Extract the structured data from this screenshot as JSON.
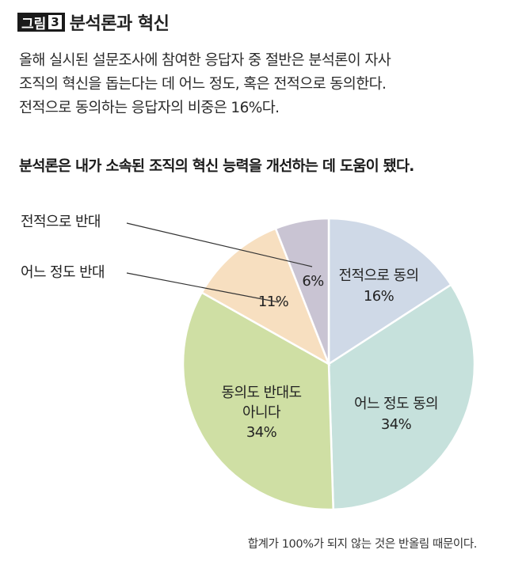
{
  "figure": {
    "badge": "그림",
    "number": "3",
    "title": "분석론과 혁신"
  },
  "intro_lines": [
    "올해 실시된 설문조사에 참여한 응답자 중 절반은 분석론이 자사",
    "조직의 혁신을 돕는다는 데 어느 정도, 혹은 전적으로 동의한다.",
    "전적으로 동의하는 응답자의 비중은 16%다."
  ],
  "question": "분석론은 내가 소속된 조직의 혁신 능력을 개선하는 데 도움이 됐다.",
  "footnote": "합계가 100%가 되지 않는 것은 반올림 때문이다.",
  "chart_data": {
    "type": "pie",
    "title": "",
    "start_angle_deg": 0,
    "direction": "clockwise",
    "slices": [
      {
        "label": "전적으로 동의",
        "value": 16,
        "value_label": "16%",
        "color": "#cfd9e7"
      },
      {
        "label": "어느 정도 동의",
        "value": 34,
        "value_label": "34%",
        "color": "#c6e1dc"
      },
      {
        "label": "동의도 반대도 아니다",
        "value": 34,
        "value_label": "34%",
        "color": "#cfdfa4"
      },
      {
        "label": "어느 정도 반대",
        "value": 11,
        "value_label": "11%",
        "color": "#f7dfc0"
      },
      {
        "label": "전적으로 반대",
        "value": 6,
        "value_label": "6%",
        "color": "#c9c4d3"
      }
    ]
  }
}
